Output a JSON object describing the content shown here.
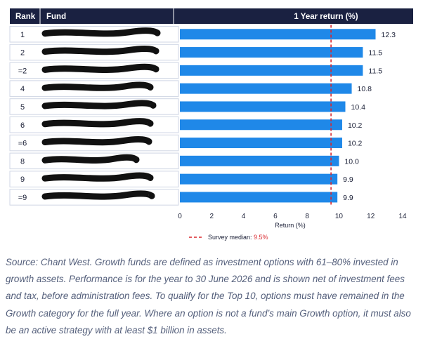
{
  "chart_data": {
    "type": "bar",
    "orientation": "horizontal",
    "title": "1 Year return (%)",
    "columns": {
      "rank": "Rank",
      "fund": "Fund"
    },
    "ranks": [
      "1",
      "2",
      "=2",
      "4",
      "5",
      "6",
      "=6",
      "8",
      "9",
      "=9"
    ],
    "values": [
      12.3,
      11.5,
      11.5,
      10.8,
      10.4,
      10.2,
      10.2,
      10.0,
      9.9,
      9.9
    ],
    "value_labels": [
      "12.3",
      "11.5",
      "11.5",
      "10.8",
      "10.4",
      "10.2",
      "10.2",
      "10.0",
      "9.9",
      "9.9"
    ],
    "fund_names_redacted": true,
    "xlabel": "Return (%)",
    "xlim": [
      0,
      14
    ],
    "xticks": [
      "0",
      "2",
      "4",
      "6",
      "8",
      "10",
      "12",
      "14"
    ],
    "median": {
      "value": 9.5,
      "label": "Survey median: ",
      "value_label": "9.5%"
    },
    "grid": false,
    "legend_position": "bottom-center",
    "colors": {
      "header": "#1a2141",
      "bar": "#1f88e8",
      "median_line": "#d9262c",
      "row_border": "#cfd6e4",
      "redaction": "#111111"
    }
  },
  "caption": "Source: Chant West. Growth funds are defined as investment options with 61–80% invested in growth assets. Performance is for the year to 30 June 2026 and is shown net of investment fees and tax, before administration fees. To qualify for the Top 10, options must have remained in the Growth category for the full year. Where an option is not a fund’s main Growth option, it must also be an active strategy with at least $1 billion in assets."
}
